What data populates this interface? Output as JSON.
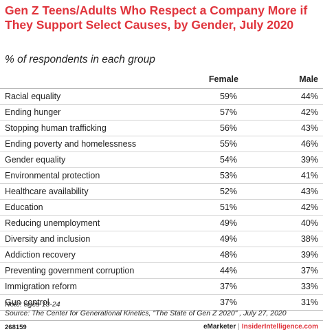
{
  "chart_data": {
    "type": "table",
    "title": "Gen Z Teens/Adults Who Respect a Company More if They Support Select Causes, by Gender, July 2020",
    "subtitle": "% of respondents in each group",
    "columns": [
      "Female",
      "Male"
    ],
    "rows": [
      {
        "label": "Racial equality",
        "female": "59%",
        "male": "44%"
      },
      {
        "label": "Ending hunger",
        "female": "57%",
        "male": "42%"
      },
      {
        "label": "Stopping human trafficking",
        "female": "56%",
        "male": "43%"
      },
      {
        "label": "Ending poverty and homelessness",
        "female": "55%",
        "male": "46%"
      },
      {
        "label": "Gender equality",
        "female": "54%",
        "male": "39%"
      },
      {
        "label": "Environmental protection",
        "female": "53%",
        "male": "41%"
      },
      {
        "label": "Healthcare availability",
        "female": "52%",
        "male": "43%"
      },
      {
        "label": "Education",
        "female": "51%",
        "male": "42%"
      },
      {
        "label": "Reducing unemployment",
        "female": "49%",
        "male": "40%"
      },
      {
        "label": "Diversity and inclusion",
        "female": "49%",
        "male": "38%"
      },
      {
        "label": "Addiction recovery",
        "female": "48%",
        "male": "39%"
      },
      {
        "label": "Preventing government corruption",
        "female": "44%",
        "male": "37%"
      },
      {
        "label": "Immigration reform",
        "female": "37%",
        "male": "33%"
      },
      {
        "label": "Gun control",
        "female": "37%",
        "male": "31%"
      }
    ]
  },
  "footer": {
    "note": "Note: ages 13-24",
    "source": "Source: The Center for Generational Kinetics, \"The State of Gen Z 2020\" , July 27, 2020",
    "chart_id": "268159",
    "brand_left": "eMarketer",
    "brand_sep": "|",
    "brand_right": "InsiderIntelligence.com"
  },
  "colors": {
    "title": "#e0343c",
    "text": "#222222",
    "rule": "#b9b9b9"
  }
}
